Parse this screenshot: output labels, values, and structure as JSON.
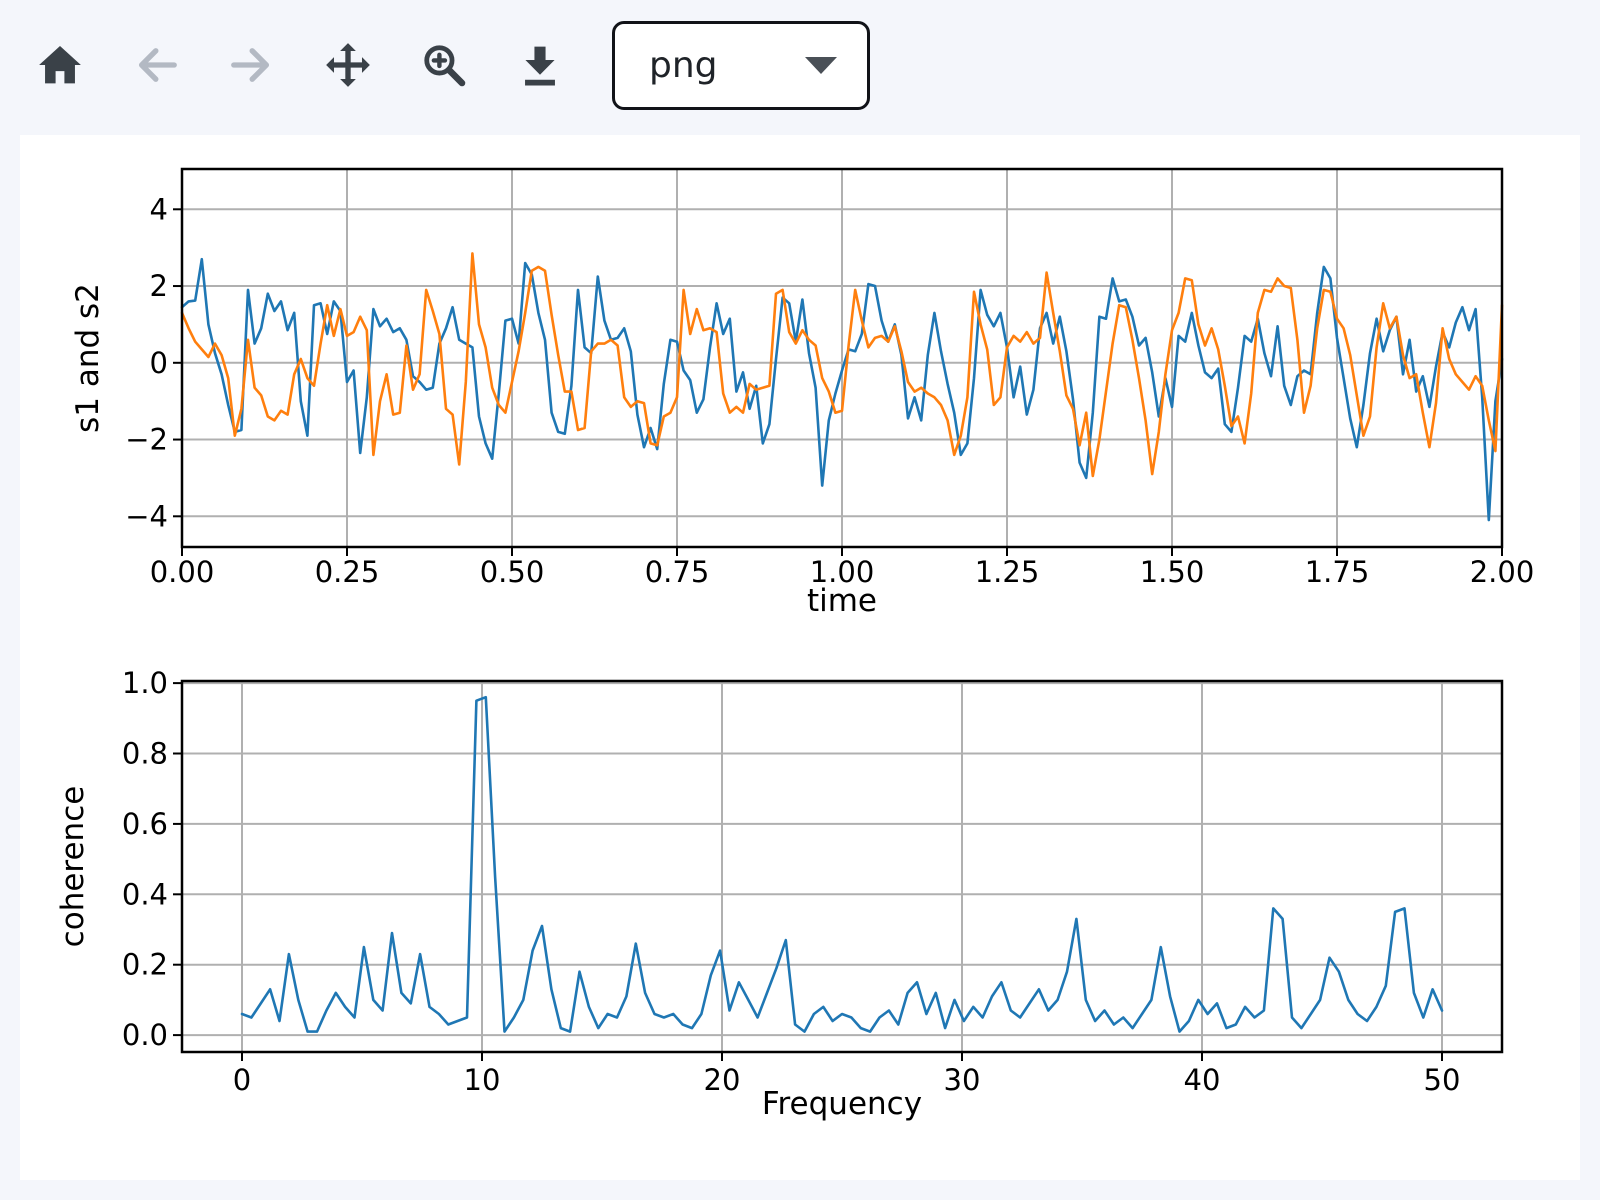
{
  "toolbar": {
    "buttons": [
      {
        "name": "home",
        "label": "Home",
        "enabled": true
      },
      {
        "name": "back",
        "label": "Back",
        "enabled": false
      },
      {
        "name": "forward",
        "label": "Forward",
        "enabled": false
      },
      {
        "name": "pan",
        "label": "Pan",
        "enabled": true
      },
      {
        "name": "zoom",
        "label": "Zoom to rectangle",
        "enabled": true
      },
      {
        "name": "download",
        "label": "Download plot",
        "enabled": true
      }
    ],
    "format_select": {
      "value": "png"
    }
  },
  "colors": {
    "page_bg": "#f4f6fb",
    "figure_bg": "#ffffff",
    "icon": "#3a4148",
    "icon_disabled": "#b3b9c3",
    "grid": "#b0b0b0",
    "spine": "#000000",
    "series_blue": "#1f77b4",
    "series_orange": "#ff7f0e"
  },
  "chart_data": [
    {
      "type": "line",
      "title": "",
      "xlabel": "time",
      "ylabel": "s1 and s2",
      "xlim": [
        0,
        2
      ],
      "ylim": [
        -4.8,
        5.05
      ],
      "grid": true,
      "legend": null,
      "xticks": {
        "values": [
          0,
          0.25,
          0.5,
          0.75,
          1.0,
          1.25,
          1.5,
          1.75,
          2.0
        ],
        "labels": [
          "0.00",
          "0.25",
          "0.50",
          "0.75",
          "1.00",
          "1.25",
          "1.50",
          "1.75",
          "2.00"
        ]
      },
      "yticks": {
        "values": [
          -4,
          -2,
          0,
          2,
          4
        ],
        "labels": [
          "−4",
          "−2",
          "0",
          "2",
          "4"
        ]
      },
      "x_start": 0,
      "x_step": 0.01,
      "series": [
        {
          "name": "s1",
          "color": "#1f77b4",
          "values": [
            1.45,
            1.6,
            1.62,
            2.7,
            1.0,
            0.25,
            -0.3,
            -1.1,
            -1.8,
            -1.75,
            1.9,
            0.5,
            0.9,
            1.8,
            1.35,
            1.6,
            0.85,
            1.3,
            -1.0,
            -1.9,
            1.5,
            1.55,
            0.75,
            1.6,
            1.35,
            -0.5,
            -0.2,
            -2.35,
            -0.9,
            1.4,
            0.95,
            1.15,
            0.8,
            0.9,
            0.6,
            -0.35,
            -0.5,
            -0.7,
            -0.65,
            0.5,
            0.9,
            1.45,
            0.6,
            0.5,
            0.4,
            -1.4,
            -2.1,
            -2.5,
            -0.8,
            1.1,
            1.15,
            0.5,
            2.6,
            2.3,
            1.3,
            0.6,
            -1.3,
            -1.8,
            -1.85,
            -0.6,
            1.9,
            0.4,
            0.25,
            2.25,
            1.1,
            0.6,
            0.65,
            0.9,
            0.3,
            -1.35,
            -2.2,
            -1.7,
            -2.25,
            -0.55,
            0.6,
            0.55,
            -0.2,
            -0.45,
            -1.3,
            -0.95,
            0.4,
            1.55,
            0.75,
            1.15,
            -0.75,
            -0.25,
            -1.2,
            -0.6,
            -2.1,
            -1.6,
            0.1,
            1.7,
            1.55,
            0.55,
            1.65,
            0.25,
            -0.65,
            -3.2,
            -1.5,
            -0.8,
            -0.2,
            0.35,
            0.3,
            0.75,
            2.05,
            2.0,
            1.1,
            0.55,
            1.0,
            0.2,
            -1.45,
            -0.9,
            -1.5,
            0.2,
            1.3,
            0.3,
            -0.55,
            -1.3,
            -2.4,
            -2.1,
            -0.4,
            1.9,
            1.25,
            0.95,
            1.3,
            0.4,
            -0.9,
            -0.1,
            -1.35,
            -0.7,
            0.9,
            1.3,
            0.5,
            1.2,
            0.3,
            -0.95,
            -2.6,
            -3.0,
            -1.3,
            1.2,
            1.15,
            2.2,
            1.6,
            1.65,
            1.2,
            0.45,
            0.65,
            -0.25,
            -1.4,
            -0.4,
            -1.15,
            0.7,
            0.55,
            1.3,
            0.45,
            -0.25,
            -0.4,
            -0.15,
            -1.6,
            -1.8,
            -0.65,
            0.7,
            0.55,
            1.15,
            0.25,
            -0.35,
            0.95,
            -0.6,
            -1.1,
            -0.35,
            -0.2,
            -0.3,
            1.3,
            2.5,
            2.2,
            0.65,
            -0.4,
            -1.45,
            -2.2,
            -1.1,
            0.25,
            1.15,
            0.3,
            0.85,
            1.2,
            -0.3,
            0.6,
            -0.75,
            -0.35,
            -1.15,
            -0.1,
            0.8,
            0.4,
            1.05,
            1.45,
            0.85,
            1.4,
            -0.9,
            -4.1,
            -1.0,
            0.1
          ]
        },
        {
          "name": "s2",
          "color": "#ff7f0e",
          "values": [
            1.3,
            0.9,
            0.55,
            0.35,
            0.15,
            0.5,
            0.2,
            -0.4,
            -1.9,
            -1.2,
            0.6,
            -0.65,
            -0.85,
            -1.4,
            -1.5,
            -1.25,
            -1.35,
            -0.3,
            0.1,
            -0.4,
            -0.6,
            0.5,
            1.5,
            0.7,
            1.4,
            0.7,
            0.8,
            1.2,
            0.85,
            -2.4,
            -1.0,
            -0.3,
            -1.35,
            -1.3,
            0.45,
            -0.7,
            -0.3,
            1.9,
            1.35,
            0.75,
            -1.2,
            -1.35,
            -2.65,
            -0.5,
            2.85,
            1.0,
            0.4,
            -0.65,
            -1.1,
            -1.3,
            -0.5,
            0.3,
            1.3,
            2.4,
            2.5,
            2.4,
            1.25,
            0.2,
            -0.75,
            -0.75,
            -1.75,
            -1.7,
            0.3,
            0.5,
            0.5,
            0.6,
            0.45,
            -0.9,
            -1.15,
            -1.0,
            -1.05,
            -2.1,
            -2.15,
            -1.4,
            -1.3,
            -0.9,
            1.9,
            0.75,
            1.4,
            0.85,
            0.9,
            0.8,
            -0.8,
            -1.3,
            -1.15,
            -1.3,
            -0.55,
            -0.7,
            -0.65,
            -0.6,
            1.8,
            1.9,
            0.8,
            0.5,
            0.85,
            0.6,
            0.45,
            -0.4,
            -0.75,
            -1.3,
            -1.25,
            0.45,
            1.9,
            1.1,
            0.4,
            0.65,
            0.7,
            0.55,
            0.95,
            0.3,
            -0.5,
            -0.75,
            -0.65,
            -0.8,
            -0.9,
            -1.1,
            -1.5,
            -2.4,
            -1.9,
            -0.9,
            1.85,
            1.0,
            0.35,
            -1.1,
            -0.9,
            0.4,
            0.7,
            0.55,
            0.8,
            0.5,
            0.65,
            2.35,
            1.3,
            0.3,
            -0.85,
            -1.2,
            -2.15,
            -1.3,
            -2.95,
            -2.0,
            -0.75,
            0.5,
            1.5,
            1.45,
            0.6,
            -0.4,
            -1.5,
            -2.9,
            -1.8,
            -0.3,
            0.85,
            1.3,
            2.2,
            2.15,
            1.0,
            0.45,
            0.9,
            0.35,
            -0.6,
            -1.65,
            -1.4,
            -2.1,
            -0.8,
            1.3,
            1.9,
            1.85,
            2.2,
            2.0,
            1.95,
            0.6,
            -1.3,
            -0.6,
            0.9,
            1.9,
            1.85,
            1.15,
            0.9,
            0.2,
            -0.85,
            -1.9,
            -1.4,
            0.4,
            1.55,
            0.9,
            1.2,
            0.2,
            -0.4,
            -0.3,
            -1.3,
            -2.2,
            -1.05,
            0.9,
            0.1,
            -0.3,
            -0.5,
            -0.7,
            -0.35,
            -0.6,
            -1.5,
            -2.3,
            1.5
          ]
        }
      ]
    },
    {
      "type": "line",
      "title": "",
      "xlabel": "Frequency",
      "ylabel": "coherence",
      "xlim": [
        -2.5,
        52.5
      ],
      "ylim": [
        -0.048,
        1.006
      ],
      "grid": true,
      "legend": null,
      "xticks": {
        "values": [
          0,
          10,
          20,
          30,
          40,
          50
        ],
        "labels": [
          "0",
          "10",
          "20",
          "30",
          "40",
          "50"
        ]
      },
      "yticks": {
        "values": [
          0,
          0.2,
          0.4,
          0.6,
          0.8,
          1.0
        ],
        "labels": [
          "0.0",
          "0.2",
          "0.4",
          "0.6",
          "0.8",
          "1.0"
        ]
      },
      "x_start": 0,
      "x_step": 0.390625,
      "series": [
        {
          "name": "coherence",
          "color": "#1f77b4",
          "values": [
            0.06,
            0.05,
            0.09,
            0.13,
            0.04,
            0.23,
            0.1,
            0.01,
            0.01,
            0.07,
            0.12,
            0.08,
            0.05,
            0.25,
            0.1,
            0.07,
            0.29,
            0.12,
            0.09,
            0.23,
            0.08,
            0.06,
            0.03,
            0.04,
            0.05,
            0.95,
            0.96,
            0.45,
            0.01,
            0.05,
            0.1,
            0.24,
            0.31,
            0.13,
            0.02,
            0.01,
            0.18,
            0.08,
            0.02,
            0.06,
            0.05,
            0.11,
            0.26,
            0.12,
            0.06,
            0.05,
            0.06,
            0.03,
            0.02,
            0.06,
            0.17,
            0.24,
            0.07,
            0.15,
            0.1,
            0.05,
            0.12,
            0.19,
            0.27,
            0.03,
            0.01,
            0.06,
            0.08,
            0.04,
            0.06,
            0.05,
            0.02,
            0.01,
            0.05,
            0.07,
            0.03,
            0.12,
            0.15,
            0.06,
            0.12,
            0.02,
            0.1,
            0.04,
            0.08,
            0.05,
            0.11,
            0.15,
            0.07,
            0.05,
            0.09,
            0.13,
            0.07,
            0.1,
            0.18,
            0.33,
            0.1,
            0.04,
            0.07,
            0.03,
            0.05,
            0.02,
            0.06,
            0.1,
            0.25,
            0.11,
            0.01,
            0.04,
            0.1,
            0.06,
            0.09,
            0.02,
            0.03,
            0.08,
            0.05,
            0.07,
            0.36,
            0.33,
            0.05,
            0.02,
            0.06,
            0.1,
            0.22,
            0.18,
            0.1,
            0.06,
            0.04,
            0.08,
            0.14,
            0.35,
            0.36,
            0.12,
            0.05,
            0.13,
            0.07
          ]
        }
      ]
    }
  ]
}
